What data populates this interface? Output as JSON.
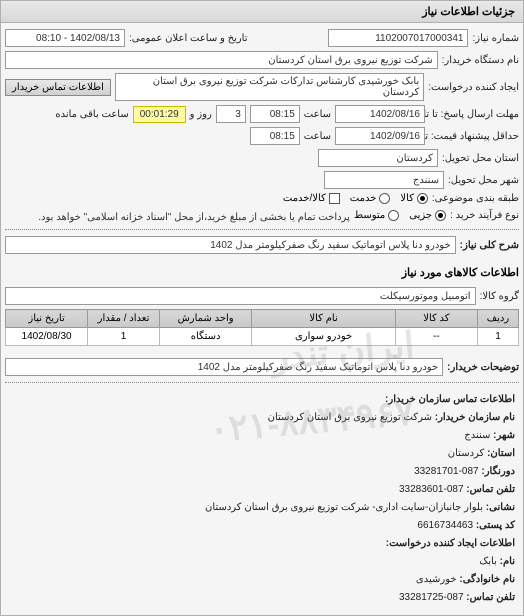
{
  "panel": {
    "title": "جزئیات اطلاعات نیاز"
  },
  "top": {
    "need_no_label": "شماره نیاز:",
    "need_no": "1102007017000341",
    "announce_label": "تاریخ و ساعت اعلان عمومی:",
    "announce_value": "1402/08/13 - 08:10",
    "org_label": "نام دستگاه خریدار:",
    "org_value": "شرکت توزیع نیروی برق استان کردستان",
    "requester_label": "ایجاد کننده درخواست:",
    "requester_value": "بابک خورشیدی کارشناس تدارکات شرکت توزیع نیروی برق استان کردستان",
    "contact_btn": "اطلاعات تماس خریدار"
  },
  "deadlines": {
    "deadline_label": "مهلت ارسال پاسخ: تا تاریخ:",
    "deadline_date": "1402/08/16",
    "time_label": "ساعت",
    "deadline_time": "08:15",
    "day_val": "3",
    "day_label": "روز و",
    "countdown": "00:01:29",
    "remain_label": "ساعت باقی مانده",
    "remark_label": "حداقل پیشنهاد قیمت: تا تاریخ:",
    "remark_date": "1402/09/16",
    "remark_time": "08:15"
  },
  "location": {
    "province_label": "استان محل تحویل:",
    "province": "کردستان",
    "city_label": "شهر محل تحویل:",
    "city": "سنندج"
  },
  "class": {
    "label": "طبقه بندی موضوعی:",
    "opt_goods": "کالا",
    "opt_service": "خدمت",
    "opt_goods_service": "کالا/خدمت",
    "selected": "goods"
  },
  "purchase": {
    "label": "نوع فرآیند خرید :",
    "opt_partial": "جزیی",
    "opt_medium": "متوسط",
    "note": "پرداخت تمام یا بخشی از مبلغ خرید،از محل \"اسناد خزانه اسلامی\" خواهد بود.",
    "selected": "partial"
  },
  "need": {
    "title_label": "شرح کلی نیاز:",
    "title_value": "خودرو دنا پلاس اتوماتیک سفید رنگ صفرکیلومتر مدل 1402",
    "items_section": "اطلاعات کالاهای مورد نیاز",
    "group_label": "گروه کالا:",
    "group_value": "اتومبیل وموتورسیکلت"
  },
  "table": {
    "columns": [
      "ردیف",
      "کد کالا",
      "نام کالا",
      "واحد شمارش",
      "تعداد / مقدار",
      "تاریخ نیاز"
    ],
    "rows": [
      [
        "1",
        "--",
        "خودرو سواری",
        "دستگاه",
        "1",
        "1402/08/30"
      ]
    ],
    "col_widths": [
      "8%",
      "16%",
      "28%",
      "18%",
      "14%",
      "16%"
    ]
  },
  "buyer_notes": {
    "label": "توضیحات خریدار:",
    "value": "خودرو دنا پلاس اتوماتیک سفید رنگ صفرکیلومتر مدل 1402"
  },
  "contact": {
    "section": "اطلاعات تماس سازمان خریدار:",
    "org_label": "نام سازمان خریدار:",
    "org_value": "شرکت توزیع نیروی برق استان کردستان",
    "city_label": "شهر:",
    "city_value": "سنندج",
    "province_label": "استان:",
    "province_value": "کردستان",
    "fax_label": "دورنگار:",
    "fax_value": "087-33281701",
    "phone_label": "تلفن تماس:",
    "phone_value": "087-33283601",
    "address_label": "نشانی:",
    "address_value": "بلوار جانبازان-سایت اداری- شرکت توزیع نیروی برق استان کردستان",
    "postal_label": "کد پستی:",
    "postal_value": "6616734463",
    "requester_section": "اطلاعات ایجاد کننده درخواست:",
    "name_label": "نام:",
    "name_value": "بابک",
    "family_label": "نام خانوادگی:",
    "family_value": "خورشیدی",
    "tel_label": "تلفن تماس:",
    "tel_value": "087-33281725"
  },
  "watermark": {
    "line1": "ایران تندر",
    "line2": "۰۲۱-۸۸۳۴۹۶۷"
  },
  "colors": {
    "panel_border": "#b0b0b0",
    "header_bg_top": "#e8e8e8",
    "header_bg_bottom": "#d8d8d8",
    "field_border": "#999999",
    "countdown_bg": "#fffca0",
    "countdown_border": "#c0c000",
    "table_header_top": "#d8d8d8",
    "table_header_bottom": "#c8c8c8"
  }
}
